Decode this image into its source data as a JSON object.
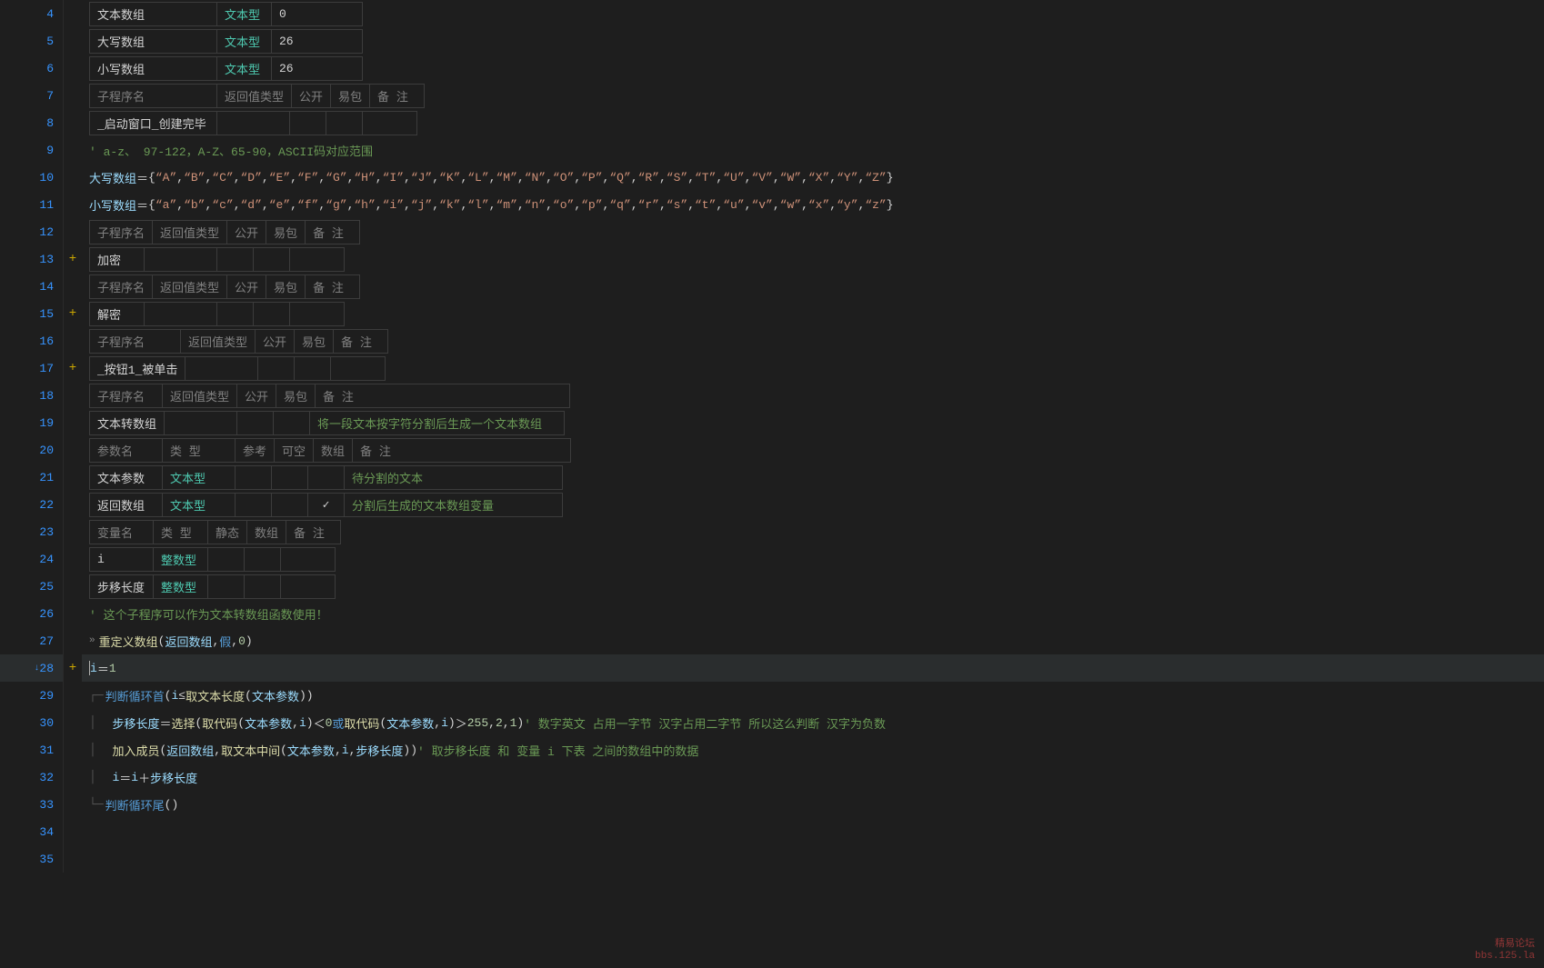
{
  "lineNumbers": [
    4,
    5,
    6,
    7,
    8,
    9,
    10,
    11,
    12,
    13,
    14,
    15,
    16,
    17,
    18,
    19,
    20,
    21,
    22,
    23,
    24,
    25,
    26,
    27,
    28,
    29,
    30,
    31,
    32,
    33,
    34,
    35
  ],
  "foldMarks": {
    "13": "+",
    "15": "+",
    "17": "+",
    "28": "+"
  },
  "activeLine": 28,
  "arrowLine": 28,
  "colors": {
    "bg": "#1e1e1e",
    "lineNum": "#3794ff",
    "teal": "#4ec9b0",
    "green": "#6a9955",
    "yellow": "#dcdcaa",
    "orange": "#ce9178",
    "blue": "#569cd6",
    "lblue": "#9cdcfe",
    "gray": "#808080",
    "num": "#b5cea8",
    "kw": "#c586c0",
    "border": "#3c3c3c",
    "activeLine": "#2a2d2e"
  },
  "table1": {
    "rows": [
      {
        "c0": "文本数组",
        "c1": "文本型",
        "c2": "0"
      },
      {
        "c0": "大写数组",
        "c1": "文本型",
        "c2": "26"
      },
      {
        "c0": "小写数组",
        "c1": "文本型",
        "c2": "26"
      }
    ]
  },
  "table2": {
    "headers": [
      "子程序名",
      "返回值类型",
      "公开",
      "易包",
      "备 注"
    ],
    "row": {
      "c0": "_启动窗口_创建完毕"
    }
  },
  "commentL9": "'  a-z、 97-122，A-Z、65-90，ASCII码对应范围",
  "l10": {
    "lhs": "大写数组",
    "op": " ＝ ",
    "open": "{ ",
    "letters": [
      "A",
      "B",
      "C",
      "D",
      "E",
      "F",
      "G",
      "H",
      "I",
      "J",
      "K",
      "L",
      "M",
      "N",
      "O",
      "P",
      "Q",
      "R",
      "S",
      "T",
      "U",
      "V",
      "W",
      "X",
      "Y",
      "Z"
    ],
    "close": " }"
  },
  "l11": {
    "lhs": "小写数组",
    "op": " ＝ ",
    "open": "{ ",
    "letters": [
      "a",
      "b",
      "c",
      "d",
      "e",
      "f",
      "g",
      "h",
      "i",
      "j",
      "k",
      "l",
      "m",
      "n",
      "o",
      "p",
      "q",
      "r",
      "s",
      "t",
      "u",
      "v",
      "w",
      "x",
      "y",
      "z"
    ],
    "close": " }"
  },
  "table3": {
    "headers": [
      "子程序名",
      "返回值类型",
      "公开",
      "易包",
      "备 注"
    ],
    "row0": "加密"
  },
  "table4": {
    "headers": [
      "子程序名",
      "返回值类型",
      "公开",
      "易包",
      "备 注"
    ],
    "row0": "解密"
  },
  "table5": {
    "headers": [
      "子程序名",
      "返回值类型",
      "公开",
      "易包",
      "备 注"
    ],
    "row0": "_按钮1_被单击"
  },
  "table6": {
    "h1": [
      "子程序名",
      "返回值类型",
      "公开",
      "易包",
      "备 注"
    ],
    "r1": {
      "c0": "文本转数组",
      "c4": "将一段文本按字符分割后生成一个文本数组"
    },
    "h2": [
      "参数名",
      "类 型",
      "参考",
      "可空",
      "数组",
      "备 注"
    ],
    "r2": {
      "c0": "文本参数",
      "c1": "文本型",
      "c5": "待分割的文本"
    },
    "r3": {
      "c0": "返回数组",
      "c1": "文本型",
      "c4": "✓",
      "c5": "分割后生成的文本数组变量"
    }
  },
  "table7": {
    "headers": [
      "变量名",
      "类 型",
      "静态",
      "数组",
      "备 注"
    ],
    "r1": {
      "c0": "i",
      "c1": "整数型"
    },
    "r2": {
      "c0": "步移长度",
      "c1": "整数型"
    }
  },
  "l26": "'  这个子程序可以作为文本转数组函数使用！",
  "l27": {
    "fn": "重定义数组",
    "args": [
      "返回数组",
      "假",
      "0"
    ]
  },
  "l28": {
    "lhs": "i",
    "op": " ＝ ",
    "rhs": "1"
  },
  "l29": {
    "fn": "判断循环首",
    "p1": "i",
    "op": " ≤ ",
    "fn2": "取文本长度",
    "arg": "文本参数"
  },
  "l30": {
    "lhs": "步移长度",
    "op": " ＝ ",
    "fn": "选择",
    "fn2": "取代码",
    "arg1": "文本参数",
    "arg2": "i",
    "cmp1": " ＜ ",
    "n1": "0",
    "or": " 或 ",
    "cmp2": " ＞ ",
    "n2": "255",
    "n3": "2",
    "n4": "1",
    "comment": "'  数字英文 占用一字节   汉字占用二字节  所以这么判断  汉字为负数"
  },
  "l31": {
    "fn": "加入成员",
    "arg1": "返回数组",
    "fn2": "取文本中间",
    "a1": "文本参数",
    "a2": "i",
    "a3": "步移长度",
    "comment": "'  取步移长度 和 变量 i  下表 之间的数组中的数据"
  },
  "l32": {
    "lhs": "i",
    "op": " ＝ ",
    "rhs1": "i",
    "plus": " ＋ ",
    "rhs2": "步移长度"
  },
  "l33": {
    "fn": "判断循环尾"
  },
  "watermark": {
    "l1": "精易论坛",
    "l2": "bbs.125.la"
  }
}
